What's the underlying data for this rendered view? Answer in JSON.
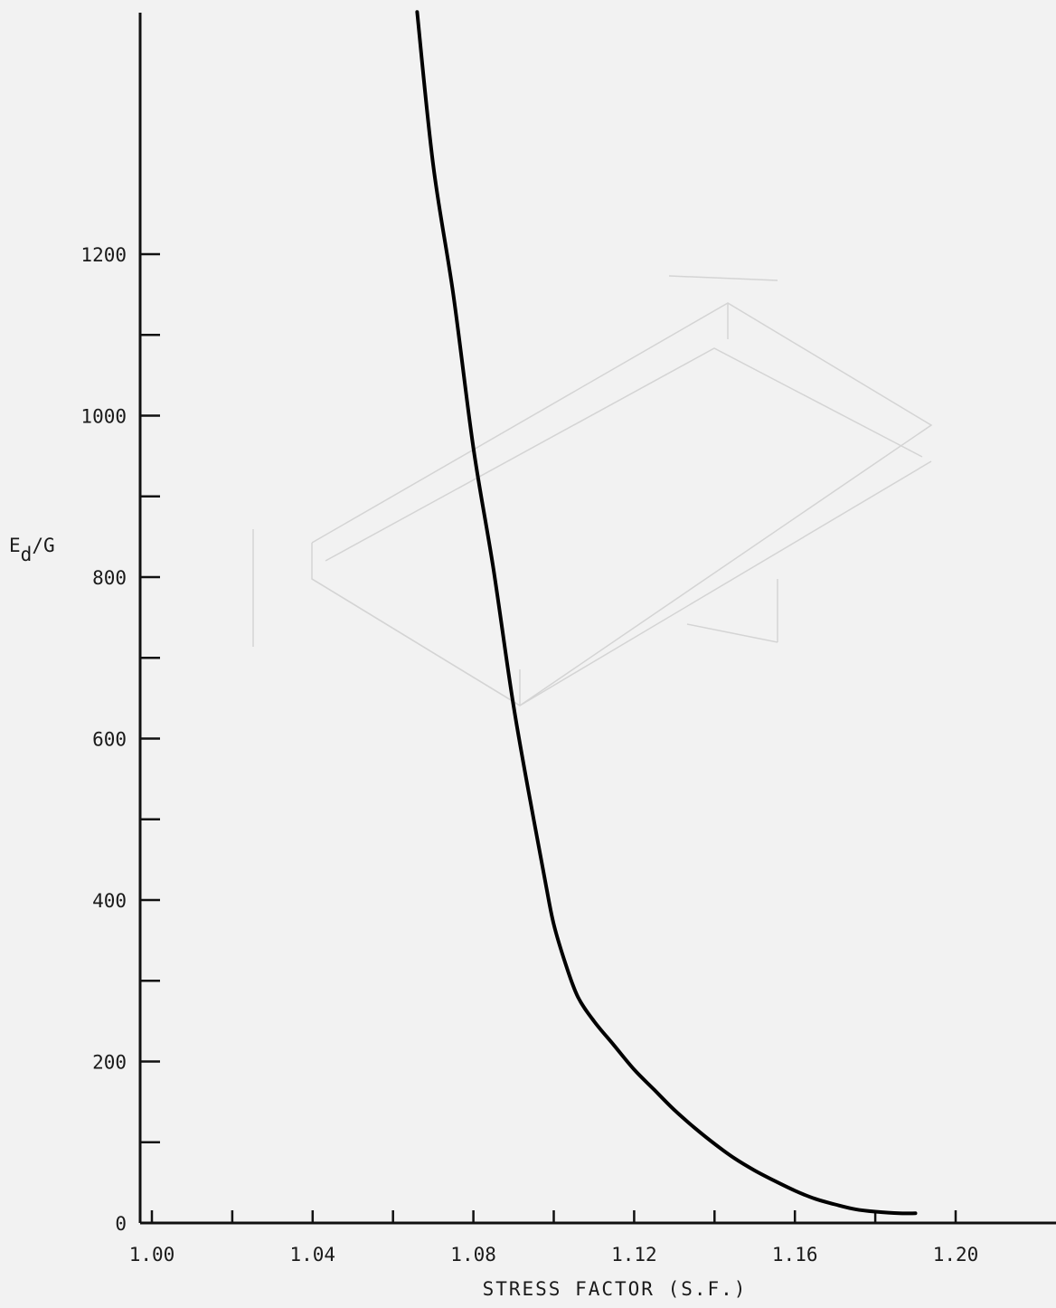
{
  "chart_data": {
    "type": "line",
    "title": "",
    "xlabel": "STRESS FACTOR (S.F.)",
    "ylabel": {
      "main": "E",
      "sub": "d",
      "rest": "/G"
    },
    "xlim": [
      1.0,
      1.2
    ],
    "ylim": [
      0,
      1400
    ],
    "x_ticks": [
      1.0,
      1.02,
      1.04,
      1.06,
      1.08,
      1.1,
      1.12,
      1.14,
      1.16,
      1.18,
      1.2
    ],
    "x_tick_labels": [
      {
        "value": 1.0,
        "label": "1.00"
      },
      {
        "value": 1.04,
        "label": "1.04"
      },
      {
        "value": 1.08,
        "label": "1.08"
      },
      {
        "value": 1.12,
        "label": "1.12"
      },
      {
        "value": 1.16,
        "label": "1.16"
      },
      {
        "value": 1.2,
        "label": "1.20"
      }
    ],
    "y_ticks": [
      0,
      100,
      200,
      300,
      400,
      500,
      600,
      700,
      800,
      900,
      1000,
      1100,
      1200
    ],
    "y_tick_labels": [
      {
        "value": 0,
        "label": "0"
      },
      {
        "value": 200,
        "label": "200"
      },
      {
        "value": 400,
        "label": "400"
      },
      {
        "value": 600,
        "label": "600"
      },
      {
        "value": 800,
        "label": "800"
      },
      {
        "value": 1000,
        "label": "1000"
      },
      {
        "value": 1200,
        "label": "1200"
      }
    ],
    "grid": false,
    "series": [
      {
        "color": "#000000",
        "x": [
          1.066,
          1.07,
          1.075,
          1.08,
          1.085,
          1.09,
          1.095,
          1.098,
          1.1,
          1.103,
          1.106,
          1.11,
          1.115,
          1.12,
          1.125,
          1.13,
          1.135,
          1.14,
          1.145,
          1.15,
          1.155,
          1.16,
          1.165,
          1.17,
          1.175,
          1.18,
          1.186,
          1.19
        ],
        "y": [
          1500,
          1310,
          1150,
          960,
          810,
          640,
          500,
          420,
          370,
          320,
          280,
          250,
          220,
          190,
          165,
          140,
          118,
          98,
          80,
          65,
          52,
          40,
          30,
          23,
          17,
          14,
          12,
          12
        ]
      }
    ]
  }
}
